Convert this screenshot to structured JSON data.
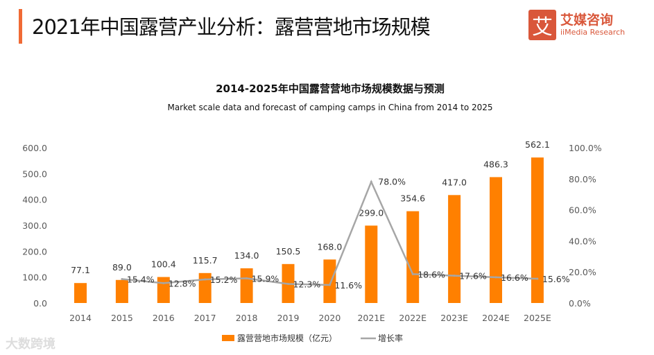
{
  "header": {
    "title": "2021年中国露营产业分析：露营营地市场规模",
    "logo_mark": "艾",
    "logo_cn": "艾媒咨询",
    "logo_en": "iiMedia Research"
  },
  "watermark": "大数跨境",
  "colors": {
    "bar": "#ff8000",
    "line": "#a6a6a6",
    "accent": "#f06a35"
  },
  "chart_data": {
    "type": "bar",
    "title": "2014-2025年中国露营营地市场规模数据与预测",
    "subtitle": "Market scale data and forecast of camping camps in China from 2014 to 2025",
    "categories": [
      "2014",
      "2015",
      "2016",
      "2017",
      "2018",
      "2019",
      "2020",
      "2021E",
      "2022E",
      "2023E",
      "2024E",
      "2025E"
    ],
    "series": [
      {
        "name": "露营营地市场规模（亿元）",
        "type": "bar",
        "axis": "left",
        "values": [
          77.1,
          89.0,
          100.4,
          115.7,
          134.0,
          150.5,
          168.0,
          299.0,
          354.6,
          417.0,
          486.3,
          562.1
        ],
        "labels": [
          "77.1",
          "89.0",
          "100.4",
          "115.7",
          "134.0",
          "150.5",
          "168.0",
          "299.0",
          "354.6",
          "417.0",
          "486.3",
          "562.1"
        ]
      },
      {
        "name": "增长率",
        "type": "line",
        "axis": "right",
        "values": [
          null,
          15.4,
          12.8,
          15.2,
          15.9,
          12.3,
          11.6,
          78.0,
          18.6,
          17.6,
          16.6,
          15.6
        ],
        "labels": [
          "",
          "15.4%",
          "12.8%",
          "15.2%",
          "15.9%",
          "12.3%",
          "11.6%",
          "78.0%",
          "18.6%",
          "17.6%",
          "16.6%",
          "15.6%"
        ]
      }
    ],
    "ylim": [
      0,
      600
    ],
    "yticks": [
      "0.0",
      "100.0",
      "200.0",
      "300.0",
      "400.0",
      "500.0",
      "600.0"
    ],
    "y2lim": [
      0,
      100
    ],
    "y2ticks": [
      "0.0%",
      "20.0%",
      "40.0%",
      "60.0%",
      "80.0%",
      "100.0%"
    ],
    "grid": false,
    "legend": "bottom"
  }
}
